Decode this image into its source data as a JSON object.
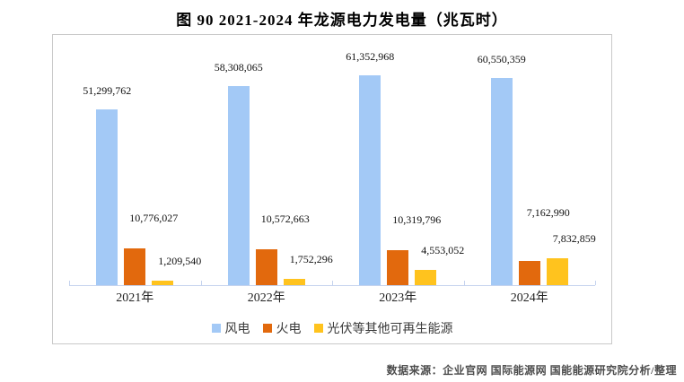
{
  "title": "图 90 2021-2024 年龙源电力发电量（兆瓦时）",
  "source_note": "数据来源：企业官网 国际能源网 国能能源研究院分析/整理",
  "colors": {
    "wind": "#a3c9f6",
    "thermal": "#e2690d",
    "solar": "#ffc31e",
    "axis": "#c5d3ee",
    "box_border": "#c9c9c9",
    "title_text": "#000000",
    "source_text": "#4d4d4d"
  },
  "chart_data": {
    "type": "bar",
    "title": "图 90 2021-2024 年龙源电力发电量（兆瓦时）",
    "unit": "兆瓦时",
    "categories": [
      "2021年",
      "2022年",
      "2023年",
      "2024年"
    ],
    "series": [
      {
        "id": "wind",
        "name": "风电",
        "color": "#a3c9f6",
        "values": [
          51299762,
          58308065,
          61352968,
          60550359
        ]
      },
      {
        "id": "thermal",
        "name": "火电",
        "color": "#e2690d",
        "values": [
          10776027,
          10572663,
          10319796,
          7162990
        ]
      },
      {
        "id": "solar",
        "name": "光伏等其他可再生能源",
        "color": "#ffc31e",
        "values": [
          1209540,
          1752296,
          4553052,
          7832859
        ]
      }
    ],
    "data_labels": true,
    "label_format": "thousands-comma",
    "ylim": [
      0,
      65000000
    ],
    "y_axis_visible": false,
    "grid": false,
    "legend_position": "bottom-inside"
  }
}
